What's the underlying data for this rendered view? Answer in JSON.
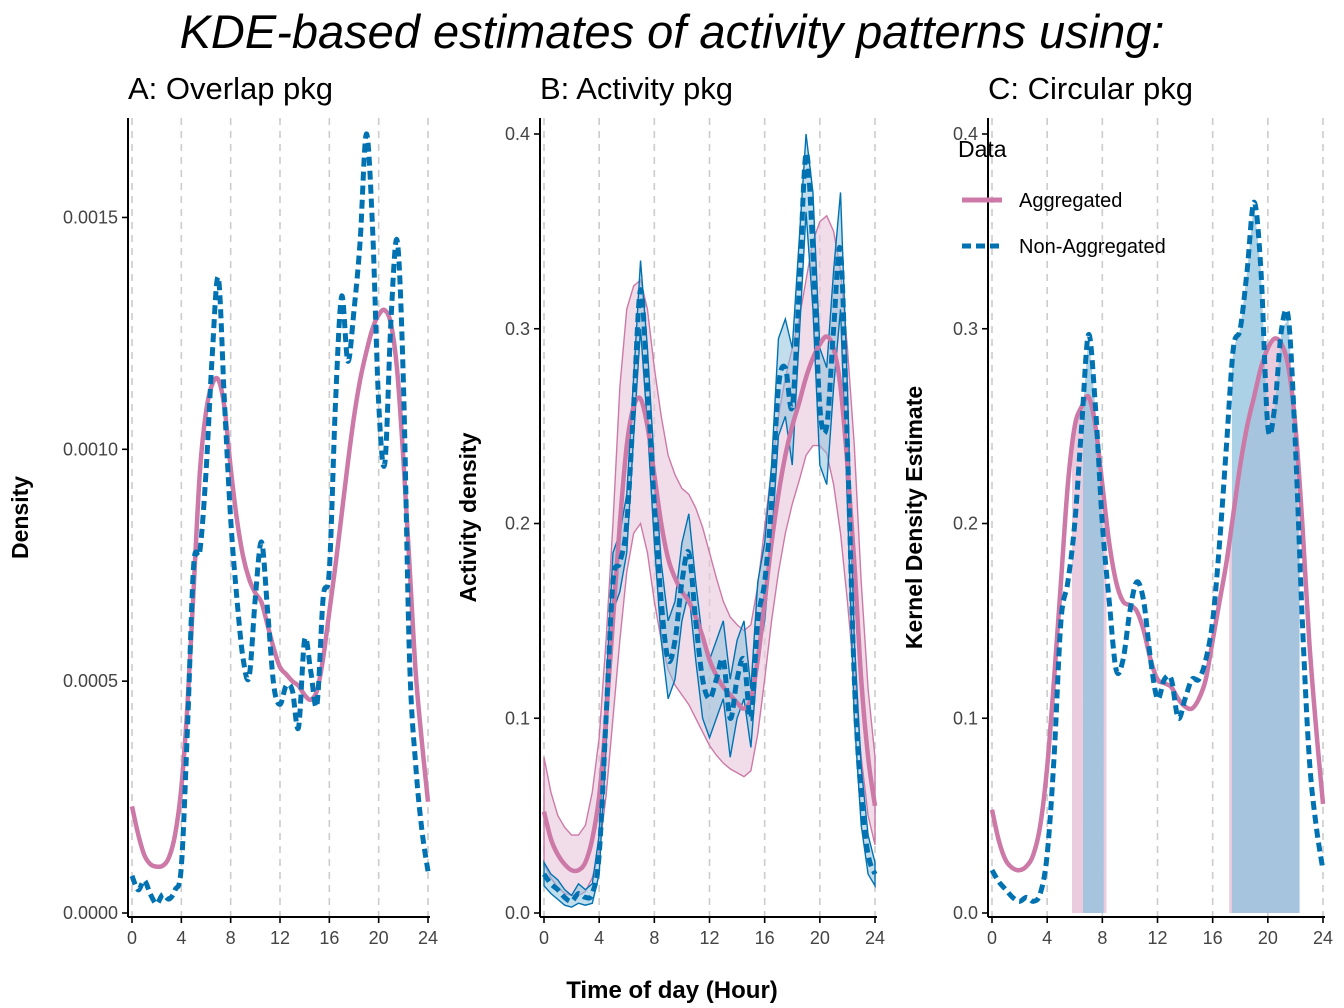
{
  "figure": {
    "title": "KDE-based estimates of activity patterns using:",
    "shared_xlabel": "Time of day (Hour)"
  },
  "colors": {
    "aggregated": "#CC79A7",
    "non_aggregated": "#0072B2",
    "aggregated_fill": "#E8C7DA",
    "non_aggregated_fill": "#8FC1DD",
    "overlap_fill": "#A5B3D3",
    "grid": "#CCCCCC",
    "axis": "#000000"
  },
  "chart_data": [
    {
      "type": "line",
      "title": "A: Overlap pkg",
      "xlabel": "",
      "ylabel": "Density",
      "xlim": [
        0,
        24
      ],
      "ylim": [
        0,
        0.00168
      ],
      "xticks": [
        0,
        4,
        8,
        12,
        16,
        20,
        24
      ],
      "yticks": [
        0.0,
        0.0005,
        0.001,
        0.0015
      ],
      "ytick_labels": [
        "0.0000",
        "0.0005",
        "0.0010",
        "0.0015"
      ],
      "grid": "vertical dashed at x ticks",
      "series": [
        {
          "key": "aggregated",
          "style": "solid",
          "x": [
            0,
            0.5,
            1,
            1.5,
            2,
            2.5,
            3,
            3.5,
            4,
            4.5,
            5,
            5.5,
            6,
            6.5,
            7,
            7.5,
            8,
            8.5,
            9,
            9.5,
            10,
            10.5,
            11,
            11.5,
            12,
            12.5,
            13,
            13.5,
            14,
            14.5,
            15,
            15.5,
            16,
            16.5,
            17,
            17.5,
            18,
            18.5,
            19,
            19.5,
            20,
            20.5,
            21,
            21.5,
            22,
            22.5,
            23,
            23.5,
            24
          ],
          "y": [
            0.00023,
            0.00017,
            0.000125,
            0.000105,
            0.0001,
            0.000102,
            0.00012,
            0.00017,
            0.00027,
            0.00045,
            0.0007,
            0.00095,
            0.00108,
            0.00114,
            0.00115,
            0.00109,
            0.00096,
            0.00085,
            0.00077,
            0.00072,
            0.00069,
            0.00067,
            0.00062,
            0.00057,
            0.00053,
            0.000515,
            0.0005,
            0.00049,
            0.00047,
            0.00046,
            0.00048,
            0.00055,
            0.00065,
            0.00075,
            0.00086,
            0.00097,
            0.00107,
            0.00115,
            0.00121,
            0.00126,
            0.00129,
            0.0013,
            0.00127,
            0.00117,
            0.00098,
            0.00075,
            0.00052,
            0.00037,
            0.00024
          ]
        },
        {
          "key": "non_aggregated",
          "style": "dashed",
          "x": [
            0,
            0.5,
            1,
            1.5,
            2,
            2.5,
            3,
            3.5,
            4,
            4.5,
            5,
            5.5,
            6,
            6.5,
            7,
            7.5,
            8,
            8.5,
            9,
            9.5,
            10,
            10.5,
            11,
            11.5,
            12,
            12.5,
            13,
            13.5,
            14,
            14.5,
            15,
            15.5,
            16,
            16.5,
            17,
            17.5,
            18,
            18.5,
            19,
            19.5,
            20,
            20.5,
            21,
            21.5,
            22,
            22.5,
            23,
            23.5,
            24
          ],
          "y": [
            8e-05,
            5e-05,
            7e-05,
            4e-05,
            2e-05,
            4e-05,
            3e-05,
            5e-05,
            0.0001,
            0.0004,
            0.00075,
            0.00078,
            0.00095,
            0.0012,
            0.00137,
            0.0011,
            0.00085,
            0.00068,
            0.00055,
            0.00051,
            0.00068,
            0.0008,
            0.00065,
            0.00049,
            0.00045,
            0.00049,
            0.00048,
            0.0004,
            0.00059,
            0.00052,
            0.00045,
            0.00068,
            0.00074,
            0.0011,
            0.00133,
            0.00119,
            0.0013,
            0.00145,
            0.00168,
            0.00148,
            0.0011,
            0.00097,
            0.00128,
            0.00145,
            0.00115,
            0.00055,
            0.00032,
            0.00018,
            9e-05
          ]
        }
      ]
    },
    {
      "type": "line",
      "title": "B: Activity pkg",
      "xlabel": "",
      "ylabel": "Activity density",
      "xlim": [
        0,
        24
      ],
      "ylim": [
        0,
        0.4
      ],
      "xticks": [
        0,
        4,
        8,
        12,
        16,
        20,
        24
      ],
      "yticks": [
        0.0,
        0.1,
        0.2,
        0.3,
        0.4
      ],
      "ytick_labels": [
        "0.0",
        "0.1",
        "0.2",
        "0.3",
        "0.4"
      ],
      "grid": "vertical dashed at x ticks",
      "series": [
        {
          "key": "aggregated",
          "style": "solid",
          "band": "confidence interval",
          "x": [
            0,
            0.5,
            1,
            1.5,
            2,
            2.5,
            3,
            3.5,
            4,
            4.5,
            5,
            5.5,
            6,
            6.5,
            7,
            7.5,
            8,
            8.5,
            9,
            9.5,
            10,
            10.5,
            11,
            11.5,
            12,
            12.5,
            13,
            13.5,
            14,
            14.5,
            15,
            15.5,
            16,
            16.5,
            17,
            17.5,
            18,
            18.5,
            19,
            19.5,
            20,
            20.5,
            21,
            21.5,
            22,
            22.5,
            23,
            23.5,
            24
          ],
          "y": [
            0.052,
            0.038,
            0.03,
            0.025,
            0.022,
            0.022,
            0.026,
            0.038,
            0.06,
            0.1,
            0.15,
            0.2,
            0.24,
            0.26,
            0.264,
            0.25,
            0.225,
            0.2,
            0.182,
            0.172,
            0.165,
            0.16,
            0.152,
            0.142,
            0.13,
            0.122,
            0.116,
            0.112,
            0.108,
            0.105,
            0.11,
            0.13,
            0.16,
            0.19,
            0.215,
            0.235,
            0.25,
            0.262,
            0.275,
            0.285,
            0.292,
            0.296,
            0.29,
            0.27,
            0.23,
            0.18,
            0.12,
            0.08,
            0.055
          ],
          "lower": [
            0.025,
            0.018,
            0.013,
            0.01,
            0.009,
            0.009,
            0.011,
            0.018,
            0.032,
            0.06,
            0.1,
            0.14,
            0.175,
            0.195,
            0.2,
            0.185,
            0.16,
            0.14,
            0.125,
            0.117,
            0.112,
            0.107,
            0.1,
            0.093,
            0.086,
            0.081,
            0.077,
            0.074,
            0.072,
            0.07,
            0.073,
            0.092,
            0.12,
            0.15,
            0.175,
            0.195,
            0.21,
            0.222,
            0.235,
            0.24,
            0.24,
            0.236,
            0.22,
            0.195,
            0.16,
            0.12,
            0.08,
            0.05,
            0.035
          ],
          "upper": [
            0.08,
            0.062,
            0.05,
            0.044,
            0.04,
            0.04,
            0.045,
            0.062,
            0.09,
            0.14,
            0.2,
            0.27,
            0.31,
            0.322,
            0.325,
            0.31,
            0.28,
            0.255,
            0.235,
            0.225,
            0.218,
            0.215,
            0.208,
            0.198,
            0.185,
            0.172,
            0.16,
            0.152,
            0.148,
            0.145,
            0.148,
            0.168,
            0.198,
            0.228,
            0.255,
            0.275,
            0.29,
            0.305,
            0.325,
            0.345,
            0.355,
            0.358,
            0.35,
            0.33,
            0.29,
            0.24,
            0.17,
            0.115,
            0.08
          ]
        },
        {
          "key": "non_aggregated",
          "style": "dashed",
          "band": "confidence interval",
          "x": [
            0,
            0.5,
            1,
            1.5,
            2,
            2.5,
            3,
            3.5,
            4,
            4.5,
            5,
            5.5,
            6,
            6.5,
            7,
            7.5,
            8,
            8.5,
            9,
            9.5,
            10,
            10.5,
            11,
            11.5,
            12,
            12.5,
            13,
            13.5,
            14,
            14.5,
            15,
            15.5,
            16,
            16.5,
            17,
            17.5,
            18,
            18.5,
            19,
            19.5,
            20,
            20.5,
            21,
            21.5,
            22,
            22.5,
            23,
            23.5,
            24
          ],
          "y": [
            0.02,
            0.015,
            0.012,
            0.008,
            0.006,
            0.01,
            0.008,
            0.01,
            0.03,
            0.1,
            0.17,
            0.18,
            0.2,
            0.26,
            0.32,
            0.27,
            0.21,
            0.16,
            0.13,
            0.14,
            0.17,
            0.185,
            0.15,
            0.12,
            0.11,
            0.12,
            0.13,
            0.1,
            0.12,
            0.13,
            0.1,
            0.15,
            0.17,
            0.21,
            0.27,
            0.28,
            0.26,
            0.32,
            0.39,
            0.34,
            0.26,
            0.25,
            0.3,
            0.34,
            0.24,
            0.12,
            0.06,
            0.03,
            0.02
          ],
          "lower": [
            0.014,
            0.01,
            0.007,
            0.004,
            0.003,
            0.005,
            0.004,
            0.005,
            0.02,
            0.085,
            0.155,
            0.165,
            0.185,
            0.245,
            0.3,
            0.25,
            0.19,
            0.14,
            0.11,
            0.12,
            0.15,
            0.165,
            0.13,
            0.1,
            0.09,
            0.1,
            0.11,
            0.08,
            0.1,
            0.11,
            0.085,
            0.13,
            0.15,
            0.19,
            0.245,
            0.255,
            0.23,
            0.295,
            0.36,
            0.31,
            0.23,
            0.22,
            0.27,
            0.31,
            0.21,
            0.1,
            0.045,
            0.02,
            0.014
          ],
          "upper": [
            0.026,
            0.02,
            0.017,
            0.012,
            0.009,
            0.015,
            0.012,
            0.015,
            0.04,
            0.115,
            0.185,
            0.195,
            0.215,
            0.275,
            0.335,
            0.29,
            0.23,
            0.18,
            0.15,
            0.16,
            0.19,
            0.205,
            0.17,
            0.14,
            0.13,
            0.14,
            0.15,
            0.12,
            0.14,
            0.15,
            0.115,
            0.17,
            0.19,
            0.23,
            0.295,
            0.305,
            0.29,
            0.345,
            0.4,
            0.37,
            0.29,
            0.28,
            0.33,
            0.37,
            0.27,
            0.14,
            0.075,
            0.04,
            0.026
          ]
        }
      ]
    },
    {
      "type": "line",
      "title": "C: Circular pkg",
      "xlabel": "",
      "ylabel": "Kernel Density Estimate",
      "xlim": [
        0,
        24
      ],
      "ylim": [
        0,
        0.4
      ],
      "xticks": [
        0,
        4,
        8,
        12,
        16,
        20,
        24
      ],
      "yticks": [
        0.0,
        0.1,
        0.2,
        0.3,
        0.4
      ],
      "ytick_labels": [
        "0.0",
        "0.1",
        "0.2",
        "0.3",
        "0.4"
      ],
      "grid": "vertical dashed at x ticks",
      "legend": {
        "title": "Data",
        "placement": "top-left",
        "entries": [
          {
            "label": "Aggregated",
            "key": "aggregated",
            "style": "solid"
          },
          {
            "label": "Non-Aggregated",
            "key": "non_aggregated",
            "style": "dashed"
          }
        ]
      },
      "series": [
        {
          "key": "aggregated",
          "style": "solid",
          "x": [
            0,
            0.5,
            1,
            1.5,
            2,
            2.5,
            3,
            3.5,
            4,
            4.5,
            5,
            5.5,
            6,
            6.5,
            7,
            7.5,
            8,
            8.5,
            9,
            9.5,
            10,
            10.5,
            11,
            11.5,
            12,
            12.5,
            13,
            13.5,
            14,
            14.5,
            15,
            15.5,
            16,
            16.5,
            17,
            17.5,
            18,
            18.5,
            19,
            19.5,
            20,
            20.5,
            21,
            21.5,
            22,
            22.5,
            23,
            23.5,
            24
          ],
          "y": [
            0.053,
            0.037,
            0.027,
            0.023,
            0.022,
            0.024,
            0.03,
            0.045,
            0.075,
            0.12,
            0.17,
            0.22,
            0.25,
            0.26,
            0.265,
            0.25,
            0.22,
            0.19,
            0.17,
            0.16,
            0.158,
            0.155,
            0.145,
            0.13,
            0.12,
            0.118,
            0.116,
            0.11,
            0.106,
            0.105,
            0.11,
            0.12,
            0.14,
            0.16,
            0.18,
            0.205,
            0.23,
            0.25,
            0.265,
            0.28,
            0.29,
            0.295,
            0.292,
            0.28,
            0.25,
            0.2,
            0.14,
            0.095,
            0.056
          ]
        },
        {
          "key": "non_aggregated",
          "style": "dashed",
          "x": [
            0,
            0.5,
            1,
            1.5,
            2,
            2.5,
            3,
            3.5,
            4,
            4.5,
            5,
            5.5,
            6,
            6.5,
            7,
            7.5,
            8,
            8.5,
            9,
            9.5,
            10,
            10.5,
            11,
            11.5,
            12,
            12.5,
            13,
            13.5,
            14,
            14.5,
            15,
            15.5,
            16,
            16.5,
            17,
            17.5,
            18,
            18.5,
            19,
            19.5,
            20,
            20.5,
            21,
            21.5,
            22,
            22.5,
            23,
            23.5,
            24
          ],
          "y": [
            0.022,
            0.016,
            0.012,
            0.008,
            0.006,
            0.008,
            0.006,
            0.01,
            0.03,
            0.08,
            0.15,
            0.17,
            0.2,
            0.25,
            0.297,
            0.26,
            0.2,
            0.16,
            0.125,
            0.13,
            0.155,
            0.17,
            0.16,
            0.13,
            0.11,
            0.12,
            0.12,
            0.1,
            0.11,
            0.12,
            0.12,
            0.13,
            0.15,
            0.19,
            0.24,
            0.29,
            0.3,
            0.33,
            0.365,
            0.33,
            0.25,
            0.26,
            0.3,
            0.305,
            0.24,
            0.15,
            0.08,
            0.045,
            0.022
          ]
        }
      ],
      "shaded_regions": [
        {
          "key": "aggregated",
          "x_from": 5.8,
          "x_to": 8.3,
          "label": ""
        },
        {
          "key": "aggregated",
          "x_from": 17.2,
          "x_to": 22.3,
          "label": ""
        },
        {
          "key": "non_aggregated",
          "x_from": 6.6,
          "x_to": 8.1,
          "label": ""
        },
        {
          "key": "non_aggregated",
          "x_from": 17.4,
          "x_to": 22.3,
          "label": ""
        }
      ]
    }
  ]
}
